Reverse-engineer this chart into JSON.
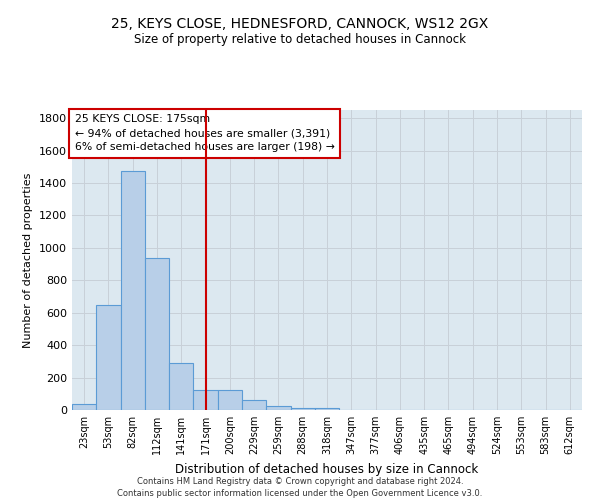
{
  "title_line1": "25, KEYS CLOSE, HEDNESFORD, CANNOCK, WS12 2GX",
  "title_line2": "Size of property relative to detached houses in Cannock",
  "xlabel": "Distribution of detached houses by size in Cannock",
  "ylabel": "Number of detached properties",
  "categories": [
    "23sqm",
    "53sqm",
    "82sqm",
    "112sqm",
    "141sqm",
    "171sqm",
    "200sqm",
    "229sqm",
    "259sqm",
    "288sqm",
    "318sqm",
    "347sqm",
    "377sqm",
    "406sqm",
    "435sqm",
    "465sqm",
    "494sqm",
    "524sqm",
    "553sqm",
    "583sqm",
    "612sqm"
  ],
  "values": [
    38,
    650,
    1475,
    935,
    290,
    125,
    125,
    62,
    22,
    10,
    10,
    0,
    0,
    0,
    0,
    0,
    0,
    0,
    0,
    0,
    0
  ],
  "bar_color": "#b8cfe8",
  "bar_edge_color": "#5b9bd5",
  "vline_x": 5,
  "vline_color": "#cc0000",
  "annotation_text": "25 KEYS CLOSE: 175sqm\n← 94% of detached houses are smaller (3,391)\n6% of semi-detached houses are larger (198) →",
  "annotation_box_color": "#cc0000",
  "annotation_text_color": "#000000",
  "ylim": [
    0,
    1850
  ],
  "yticks": [
    0,
    200,
    400,
    600,
    800,
    1000,
    1200,
    1400,
    1600,
    1800
  ],
  "grid_color": "#c8d0d8",
  "bg_color": "#dce8f0",
  "footer": "Contains HM Land Registry data © Crown copyright and database right 2024.\nContains public sector information licensed under the Open Government Licence v3.0."
}
